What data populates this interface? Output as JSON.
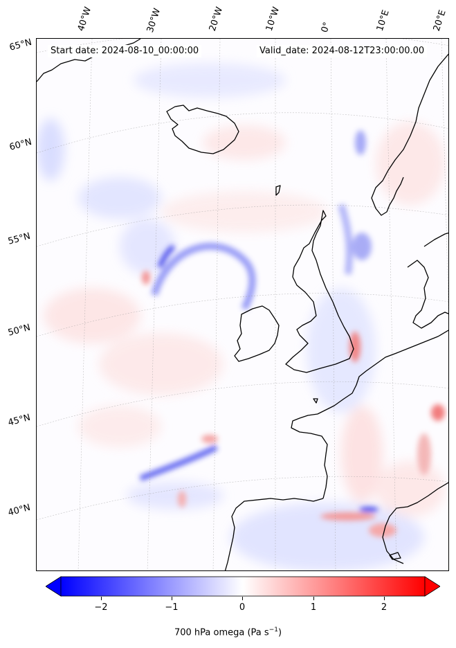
{
  "map": {
    "start_date": "Start date: 2024-08-10_00:00:00",
    "valid_date": "Valid_date: 2024-08-12T23:00:00.00",
    "lon_labels": [
      "40°W",
      "30°W",
      "20°W",
      "10°W",
      "0°",
      "10°E",
      "20°E"
    ],
    "lat_labels": [
      "65°N",
      "60°N",
      "55°N",
      "50°N",
      "45°N",
      "40°N"
    ],
    "variable": "700 hPa omega",
    "units": "Pa s",
    "units_exponent": "−1"
  },
  "colorbar": {
    "ticks": [
      "−2",
      "−1",
      "0",
      "1",
      "2"
    ],
    "tick_values": [
      -2,
      -1,
      0,
      1,
      2
    ],
    "range": [
      -2.5,
      2.5
    ],
    "low_color": "#0000ff",
    "mid_color": "#ffffff",
    "high_color": "#ff0000"
  }
}
